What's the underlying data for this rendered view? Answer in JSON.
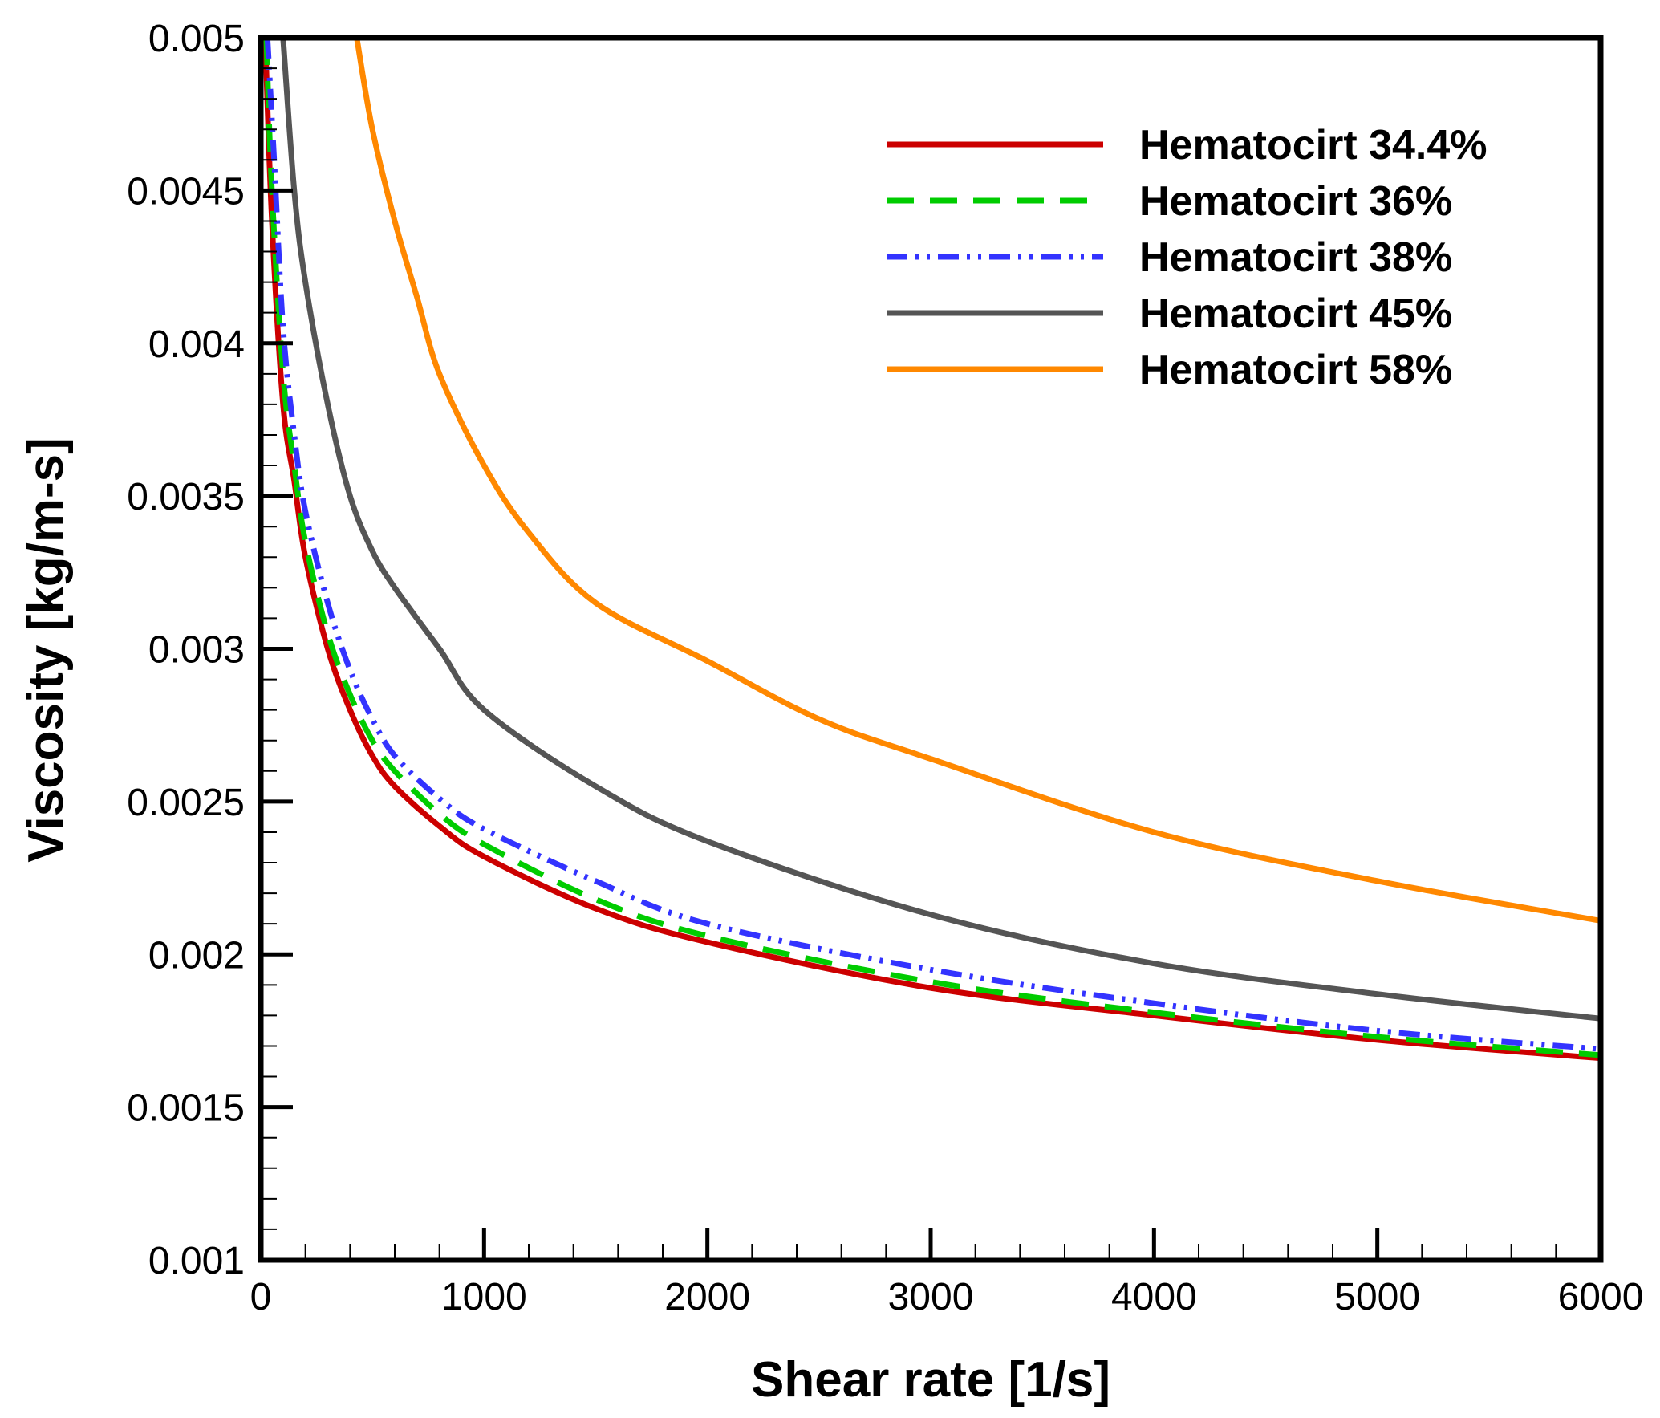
{
  "chart_data": {
    "type": "line",
    "title": "",
    "xlabel": "Shear rate [1/s]",
    "ylabel": "Viscosity [kg/m-s]",
    "xlim": [
      0,
      6000
    ],
    "ylim": [
      0.001,
      0.005
    ],
    "xticks": [
      0,
      1000,
      2000,
      3000,
      4000,
      5000,
      6000
    ],
    "xtick_labels": [
      "0",
      "1000",
      "2000",
      "3000",
      "4000",
      "5000",
      "6000"
    ],
    "yticks": [
      0.001,
      0.0015,
      0.002,
      0.0025,
      0.003,
      0.0035,
      0.004,
      0.0045,
      0.005
    ],
    "ytick_labels": [
      "0.001",
      "0.0015",
      "0.002",
      "0.0025",
      "0.003",
      "0.0035",
      "0.004",
      "0.0045",
      "0.005"
    ],
    "grid": false,
    "legend_position": "top-right",
    "series": [
      {
        "name": "Hematocirt 34.4%",
        "color": "#cc0000",
        "style": "solid",
        "x": [
          20,
          50,
          100,
          150,
          200,
          300,
          400,
          500,
          600,
          800,
          1000,
          1500,
          2000,
          3000,
          4000,
          5000,
          6000
        ],
        "y": [
          0.005,
          0.0044,
          0.0038,
          0.00355,
          0.0033,
          0.003,
          0.0028,
          0.00265,
          0.00255,
          0.00242,
          0.00232,
          0.00215,
          0.00204,
          0.00189,
          0.0018,
          0.00172,
          0.00166
        ]
      },
      {
        "name": "Hematocirt 36%",
        "color": "#00cc00",
        "style": "dashed",
        "x": [
          25,
          50,
          100,
          150,
          200,
          300,
          400,
          500,
          600,
          800,
          1000,
          1500,
          2000,
          3000,
          4000,
          5000,
          6000
        ],
        "y": [
          0.005,
          0.0045,
          0.0039,
          0.0036,
          0.00335,
          0.00305,
          0.00285,
          0.0027,
          0.0026,
          0.00246,
          0.00236,
          0.00218,
          0.00206,
          0.00191,
          0.00181,
          0.00173,
          0.00167
        ]
      },
      {
        "name": "Hematocirt 38%",
        "color": "#3333ff",
        "style": "dashdotdot",
        "x": [
          30,
          60,
          100,
          150,
          200,
          300,
          400,
          500,
          600,
          800,
          1000,
          1500,
          2000,
          3000,
          4000,
          5000,
          6000
        ],
        "y": [
          0.005,
          0.0046,
          0.00405,
          0.0037,
          0.00345,
          0.00315,
          0.00293,
          0.00277,
          0.00265,
          0.00251,
          0.00241,
          0.00224,
          0.0021,
          0.00195,
          0.00184,
          0.00175,
          0.00169
        ]
      },
      {
        "name": "Hematocirt 45%",
        "color": "#555555",
        "style": "solid",
        "x": [
          100,
          150,
          200,
          300,
          400,
          500,
          600,
          800,
          1000,
          1500,
          2000,
          3000,
          4000,
          5000,
          6000
        ],
        "y": [
          0.005,
          0.0045,
          0.0042,
          0.0038,
          0.0035,
          0.00332,
          0.0032,
          0.003,
          0.0028,
          0.00255,
          0.00237,
          0.00213,
          0.00197,
          0.00187,
          0.00179
        ]
      },
      {
        "name": "Hematocirt 58%",
        "color": "#ff8800",
        "style": "solid",
        "x": [
          430,
          500,
          600,
          700,
          800,
          1000,
          1200,
          1500,
          2000,
          2500,
          3000,
          4000,
          5000,
          6000
        ],
        "y": [
          0.005,
          0.0047,
          0.0044,
          0.00415,
          0.0039,
          0.0036,
          0.00338,
          0.00315,
          0.00296,
          0.00277,
          0.00264,
          0.0024,
          0.00224,
          0.00211
        ]
      }
    ]
  }
}
